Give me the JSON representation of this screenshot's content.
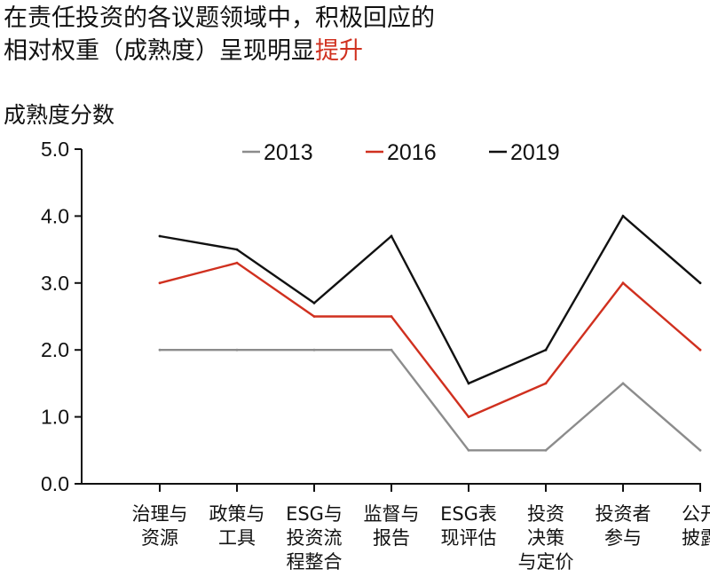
{
  "title": {
    "line1": "在责任投资的各议题领域中，积极回应的",
    "line2_prefix": "相对权重（成熟度）呈现明显",
    "line2_accent": "提升"
  },
  "colors": {
    "s2013": "#8c8c8c",
    "s2016": "#d0301f",
    "s2019": "#111111",
    "accent": "#d0301f",
    "axis": "#111111"
  },
  "chart_data": {
    "type": "line",
    "title": "",
    "xlabel": "",
    "ylabel": "成熟度分数",
    "ylim": [
      0,
      5
    ],
    "yticks": [
      "0.0",
      "1.0",
      "2.0",
      "3.0",
      "4.0",
      "5.0"
    ],
    "grid": false,
    "legend_position": "top",
    "categories": [
      [
        "治理与",
        "资源"
      ],
      [
        "政策与",
        "工具"
      ],
      [
        "ESG与",
        "投资流",
        "程整合"
      ],
      [
        "监督与",
        "报告"
      ],
      [
        "ESG表",
        "现评估"
      ],
      [
        "投资",
        "决策",
        "与定价"
      ],
      [
        "投资者",
        "参与"
      ],
      [
        "公开",
        "披露"
      ]
    ],
    "series": [
      {
        "name": "2013",
        "color": "#8c8c8c",
        "values": [
          2.0,
          2.0,
          2.0,
          2.0,
          0.5,
          0.5,
          1.5,
          0.5
        ]
      },
      {
        "name": "2016",
        "color": "#d0301f",
        "values": [
          3.0,
          3.3,
          2.5,
          2.5,
          1.0,
          1.5,
          3.0,
          2.0
        ]
      },
      {
        "name": "2019",
        "color": "#111111",
        "values": [
          3.7,
          3.5,
          2.7,
          3.7,
          1.5,
          2.0,
          4.0,
          3.0
        ]
      }
    ]
  }
}
